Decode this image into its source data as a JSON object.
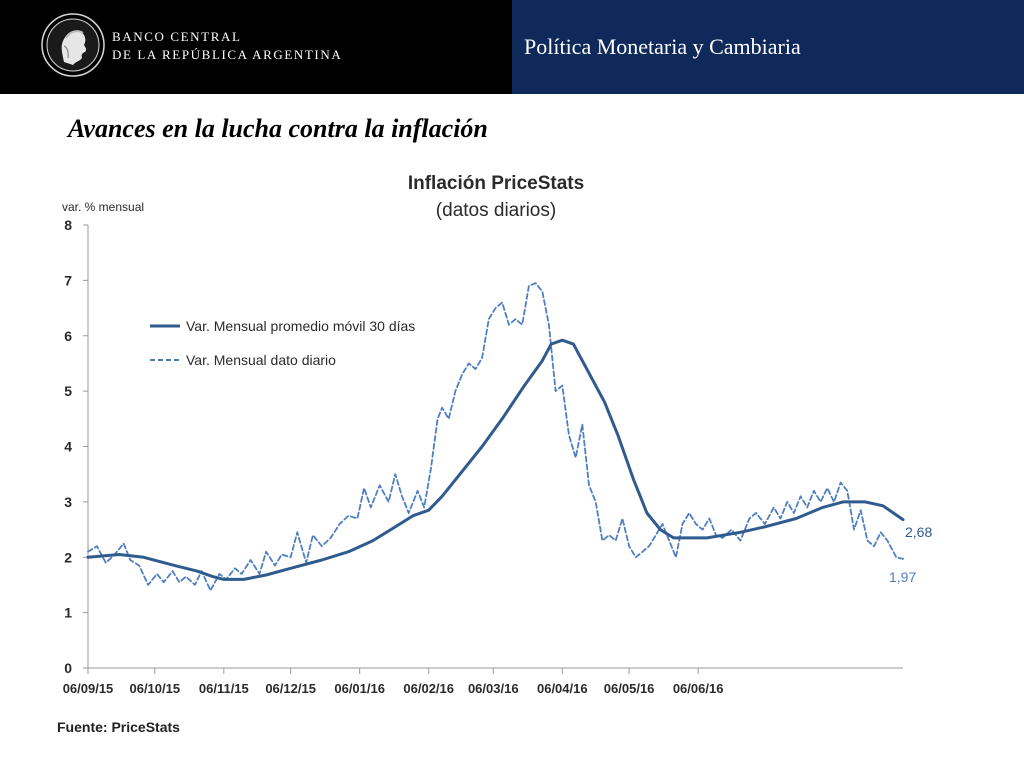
{
  "header": {
    "bank_name_line1": "BANCO CENTRAL",
    "bank_name_line2": "DE LA REPÚBLICA ARGENTINA",
    "section_title": "Política Monetaria y Cambiaria",
    "colors": {
      "left_bg": "#000000",
      "right_bg": "#0f2a5a"
    },
    "logo_icon": "seal-profile-icon"
  },
  "page_title": "Avances en la lucha contra la inflación",
  "source_text": "Fuente: PriceStats",
  "chart_data": {
    "type": "line",
    "title": "Inflación PriceStats",
    "subtitle": "(datos diarios)",
    "ylabel": "var. % mensual",
    "ylim": [
      0,
      8
    ],
    "yticks": [
      "0",
      "1",
      "2",
      "3",
      "4",
      "5",
      "6",
      "7",
      "8"
    ],
    "x_ticks": [
      "06/09/15",
      "06/10/15",
      "06/11/15",
      "06/12/15",
      "06/01/16",
      "06/02/16",
      "06/03/16",
      "06/04/16",
      "06/05/16",
      "06/06/16"
    ],
    "grid": false,
    "legend": "upper-left",
    "series": [
      {
        "name": "Var. Mensual promedio móvil 30 días",
        "style": "solid",
        "color": "#2f5b8e",
        "end_label": "2,68",
        "points": [
          [
            "2015-09-06",
            2.0
          ],
          [
            "2015-09-20",
            2.05
          ],
          [
            "2015-10-01",
            2.0
          ],
          [
            "2015-10-15",
            1.85
          ],
          [
            "2015-10-25",
            1.75
          ],
          [
            "2015-11-01",
            1.65
          ],
          [
            "2015-11-06",
            1.6
          ],
          [
            "2015-11-15",
            1.6
          ],
          [
            "2015-11-25",
            1.68
          ],
          [
            "2015-12-06",
            1.8
          ],
          [
            "2015-12-20",
            1.95
          ],
          [
            "2016-01-01",
            2.1
          ],
          [
            "2016-01-12",
            2.3
          ],
          [
            "2016-01-20",
            2.5
          ],
          [
            "2016-01-30",
            2.75
          ],
          [
            "2016-02-06",
            2.85
          ],
          [
            "2016-02-12",
            3.1
          ],
          [
            "2016-02-20",
            3.5
          ],
          [
            "2016-03-01",
            4.0
          ],
          [
            "2016-03-10",
            4.5
          ],
          [
            "2016-03-20",
            5.1
          ],
          [
            "2016-03-28",
            5.55
          ],
          [
            "2016-04-01",
            5.85
          ],
          [
            "2016-04-06",
            5.92
          ],
          [
            "2016-04-11",
            5.85
          ],
          [
            "2016-04-17",
            5.4
          ],
          [
            "2016-04-25",
            4.8
          ],
          [
            "2016-05-01",
            4.2
          ],
          [
            "2016-05-08",
            3.4
          ],
          [
            "2016-05-14",
            2.8
          ],
          [
            "2016-05-20",
            2.5
          ],
          [
            "2016-05-26",
            2.35
          ],
          [
            "2016-06-01",
            2.35
          ],
          [
            "2016-06-10",
            2.35
          ],
          [
            "2016-06-25",
            2.45
          ],
          [
            "2016-07-06",
            2.55
          ],
          [
            "2016-07-20",
            2.7
          ],
          [
            "2016-08-01",
            2.9
          ],
          [
            "2016-08-10",
            3.0
          ],
          [
            "2016-08-20",
            3.0
          ],
          [
            "2016-08-28",
            2.93
          ],
          [
            "2016-09-06",
            2.68
          ]
        ]
      },
      {
        "name": "Var. Mensual dato diario",
        "style": "dashed",
        "color": "#4f7fbf",
        "end_label": "1,97",
        "points": [
          [
            "2015-09-06",
            2.1
          ],
          [
            "2015-09-10",
            2.2
          ],
          [
            "2015-09-14",
            1.9
          ],
          [
            "2015-09-18",
            2.05
          ],
          [
            "2015-09-22",
            2.25
          ],
          [
            "2015-09-25",
            1.95
          ],
          [
            "2015-09-29",
            1.85
          ],
          [
            "2015-10-03",
            1.5
          ],
          [
            "2015-10-07",
            1.7
          ],
          [
            "2015-10-10",
            1.55
          ],
          [
            "2015-10-14",
            1.75
          ],
          [
            "2015-10-17",
            1.55
          ],
          [
            "2015-10-20",
            1.65
          ],
          [
            "2015-10-24",
            1.5
          ],
          [
            "2015-10-27",
            1.75
          ],
          [
            "2015-10-31",
            1.4
          ],
          [
            "2015-11-04",
            1.7
          ],
          [
            "2015-11-07",
            1.6
          ],
          [
            "2015-11-11",
            1.8
          ],
          [
            "2015-11-14",
            1.7
          ],
          [
            "2015-11-18",
            1.95
          ],
          [
            "2015-11-22",
            1.7
          ],
          [
            "2015-11-25",
            2.1
          ],
          [
            "2015-11-29",
            1.85
          ],
          [
            "2015-12-02",
            2.05
          ],
          [
            "2015-12-06",
            2.0
          ],
          [
            "2015-12-09",
            2.45
          ],
          [
            "2015-12-13",
            1.9
          ],
          [
            "2015-12-16",
            2.4
          ],
          [
            "2015-12-20",
            2.2
          ],
          [
            "2015-12-24",
            2.35
          ],
          [
            "2015-12-28",
            2.6
          ],
          [
            "2016-01-01",
            2.75
          ],
          [
            "2016-01-05",
            2.7
          ],
          [
            "2016-01-08",
            3.25
          ],
          [
            "2016-01-11",
            2.9
          ],
          [
            "2016-01-15",
            3.3
          ],
          [
            "2016-01-19",
            3.0
          ],
          [
            "2016-01-22",
            3.5
          ],
          [
            "2016-01-25",
            3.1
          ],
          [
            "2016-01-28",
            2.8
          ],
          [
            "2016-02-01",
            3.2
          ],
          [
            "2016-02-04",
            2.9
          ],
          [
            "2016-02-07",
            3.6
          ],
          [
            "2016-02-10",
            4.5
          ],
          [
            "2016-02-12",
            4.7
          ],
          [
            "2016-02-15",
            4.5
          ],
          [
            "2016-02-18",
            5.0
          ],
          [
            "2016-02-21",
            5.3
          ],
          [
            "2016-02-24",
            5.5
          ],
          [
            "2016-02-27",
            5.4
          ],
          [
            "2016-03-01",
            5.6
          ],
          [
            "2016-03-04",
            6.3
          ],
          [
            "2016-03-07",
            6.5
          ],
          [
            "2016-03-10",
            6.6
          ],
          [
            "2016-03-13",
            6.2
          ],
          [
            "2016-03-16",
            6.3
          ],
          [
            "2016-03-19",
            6.2
          ],
          [
            "2016-03-22",
            6.9
          ],
          [
            "2016-03-25",
            6.95
          ],
          [
            "2016-03-28",
            6.8
          ],
          [
            "2016-03-31",
            6.2
          ],
          [
            "2016-04-03",
            5.0
          ],
          [
            "2016-04-06",
            5.1
          ],
          [
            "2016-04-09",
            4.2
          ],
          [
            "2016-04-12",
            3.8
          ],
          [
            "2016-04-15",
            4.4
          ],
          [
            "2016-04-18",
            3.3
          ],
          [
            "2016-04-21",
            3.0
          ],
          [
            "2016-04-24",
            2.3
          ],
          [
            "2016-04-27",
            2.4
          ],
          [
            "2016-04-30",
            2.3
          ],
          [
            "2016-05-03",
            2.7
          ],
          [
            "2016-05-06",
            2.2
          ],
          [
            "2016-05-09",
            2.0
          ],
          [
            "2016-05-12",
            2.1
          ],
          [
            "2016-05-15",
            2.2
          ],
          [
            "2016-05-18",
            2.4
          ],
          [
            "2016-05-21",
            2.6
          ],
          [
            "2016-05-24",
            2.3
          ],
          [
            "2016-05-27",
            2.0
          ],
          [
            "2016-05-30",
            2.6
          ],
          [
            "2016-06-02",
            2.8
          ],
          [
            "2016-06-05",
            2.6
          ],
          [
            "2016-06-08",
            2.5
          ],
          [
            "2016-06-11",
            2.7
          ],
          [
            "2016-06-14",
            2.4
          ],
          [
            "2016-06-17",
            2.35
          ],
          [
            "2016-06-21",
            2.5
          ],
          [
            "2016-06-25",
            2.3
          ],
          [
            "2016-06-29",
            2.7
          ],
          [
            "2016-07-02",
            2.8
          ],
          [
            "2016-07-06",
            2.6
          ],
          [
            "2016-07-10",
            2.9
          ],
          [
            "2016-07-13",
            2.7
          ],
          [
            "2016-07-16",
            3.0
          ],
          [
            "2016-07-19",
            2.8
          ],
          [
            "2016-07-22",
            3.1
          ],
          [
            "2016-07-25",
            2.9
          ],
          [
            "2016-07-28",
            3.2
          ],
          [
            "2016-07-31",
            3.0
          ],
          [
            "2016-08-03",
            3.25
          ],
          [
            "2016-08-06",
            3.0
          ],
          [
            "2016-08-09",
            3.35
          ],
          [
            "2016-08-12",
            3.2
          ],
          [
            "2016-08-15",
            2.5
          ],
          [
            "2016-08-18",
            2.85
          ],
          [
            "2016-08-21",
            2.3
          ],
          [
            "2016-08-24",
            2.2
          ],
          [
            "2016-08-27",
            2.45
          ],
          [
            "2016-08-30",
            2.3
          ],
          [
            "2016-09-03",
            2.0
          ],
          [
            "2016-09-06",
            1.97
          ]
        ]
      }
    ]
  }
}
